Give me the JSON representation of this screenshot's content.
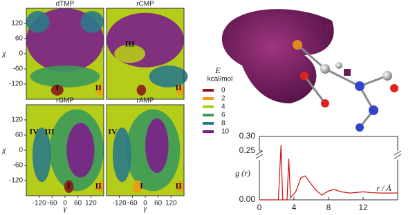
{
  "chart_data": [
    {
      "type": "contour",
      "panels": [
        {
          "title": "dTMP",
          "labels": [
            "I",
            "II"
          ]
        },
        {
          "title": "rCMP",
          "labels": [
            "III",
            "II"
          ]
        },
        {
          "title": "rGMP",
          "labels": [
            "IV",
            "III",
            "I",
            "II"
          ]
        },
        {
          "title": "rAMP",
          "labels": [
            "IV",
            "I",
            "II"
          ]
        }
      ],
      "ylabel": "χ",
      "xlabel": "γ",
      "xlim": [
        -180,
        180
      ],
      "ylim": [
        -180,
        180
      ],
      "xticks": [
        -120,
        -60,
        0,
        60,
        120
      ],
      "yticks": [
        120,
        60,
        0,
        -60,
        -120
      ],
      "legend": {
        "title": "E",
        "unit": "kcal/mol",
        "levels": [
          0,
          2,
          4,
          6,
          8,
          10
        ],
        "colors": [
          "#8b1a1a",
          "#f39c12",
          "#b5cc18",
          "#3a9a5a",
          "#2a7a8a",
          "#7b1f8a"
        ]
      }
    },
    {
      "type": "line",
      "ylabel": "g (r)",
      "xlabel": "r / Å",
      "color": "#cc1111",
      "xlim": [
        0,
        16
      ],
      "xticks": [
        0,
        4,
        8,
        12
      ],
      "ylim": [
        0,
        0.3
      ],
      "ybreak": [
        0.1,
        0.25
      ],
      "yticks": [
        {
          "value": 0,
          "label": "0.00"
        },
        0.25,
        {
          "value": 0.3,
          "label": "0.30"
        }
      ],
      "x": [
        0,
        2.2,
        2.5,
        2.7,
        3.2,
        3.4,
        3.6,
        4.2,
        4.8,
        5.3,
        5.8,
        6.5,
        7.2,
        8,
        8.6,
        9.5,
        10.5,
        12,
        13,
        14,
        16
      ],
      "values": [
        0,
        0,
        0.27,
        0,
        0,
        0.12,
        0.005,
        0.02,
        0.055,
        0.06,
        0.045,
        0.025,
        0.012,
        0.022,
        0.026,
        0.02,
        0.017,
        0.02,
        0.018,
        0.017,
        0.017
      ]
    }
  ]
}
